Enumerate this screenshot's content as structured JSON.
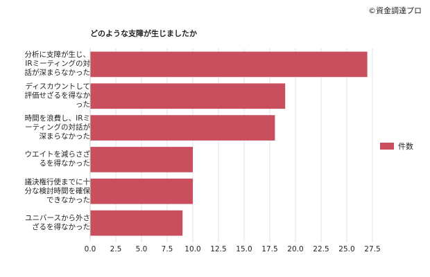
{
  "copyright": "©資金調達プロ",
  "chart_data": {
    "type": "bar",
    "orientation": "horizontal",
    "title": "どのような支障が生じましたか",
    "categories": [
      [
        "分析に支障が生じ、",
        "IRミーティングの対",
        "話が深まらなかった"
      ],
      [
        "ディスカウントして",
        "評価せざるを得なか",
        "った"
      ],
      [
        "時間を浪費し、IRミ",
        "ーティングの対話が",
        "深まらなかった"
      ],
      [
        "ウエイトを減らさざ",
        "るを得なかった"
      ],
      [
        "議決権行使までに十",
        "分な検討時間を確保",
        "できなかった"
      ],
      [
        "ユニバースから外さ",
        "ざるを得なかった"
      ]
    ],
    "series": [
      {
        "name": "件数",
        "values": [
          27,
          19,
          18,
          10,
          10,
          9
        ],
        "color": "#c94f5e"
      }
    ],
    "xlim": [
      0,
      27.5
    ],
    "xticks": [
      "0.0",
      "2.5",
      "5.0",
      "7.5",
      "10.0",
      "12.5",
      "15.0",
      "17.5",
      "20.0",
      "22.5",
      "25.0",
      "27.5"
    ],
    "grid": true,
    "legend_position": "right"
  }
}
